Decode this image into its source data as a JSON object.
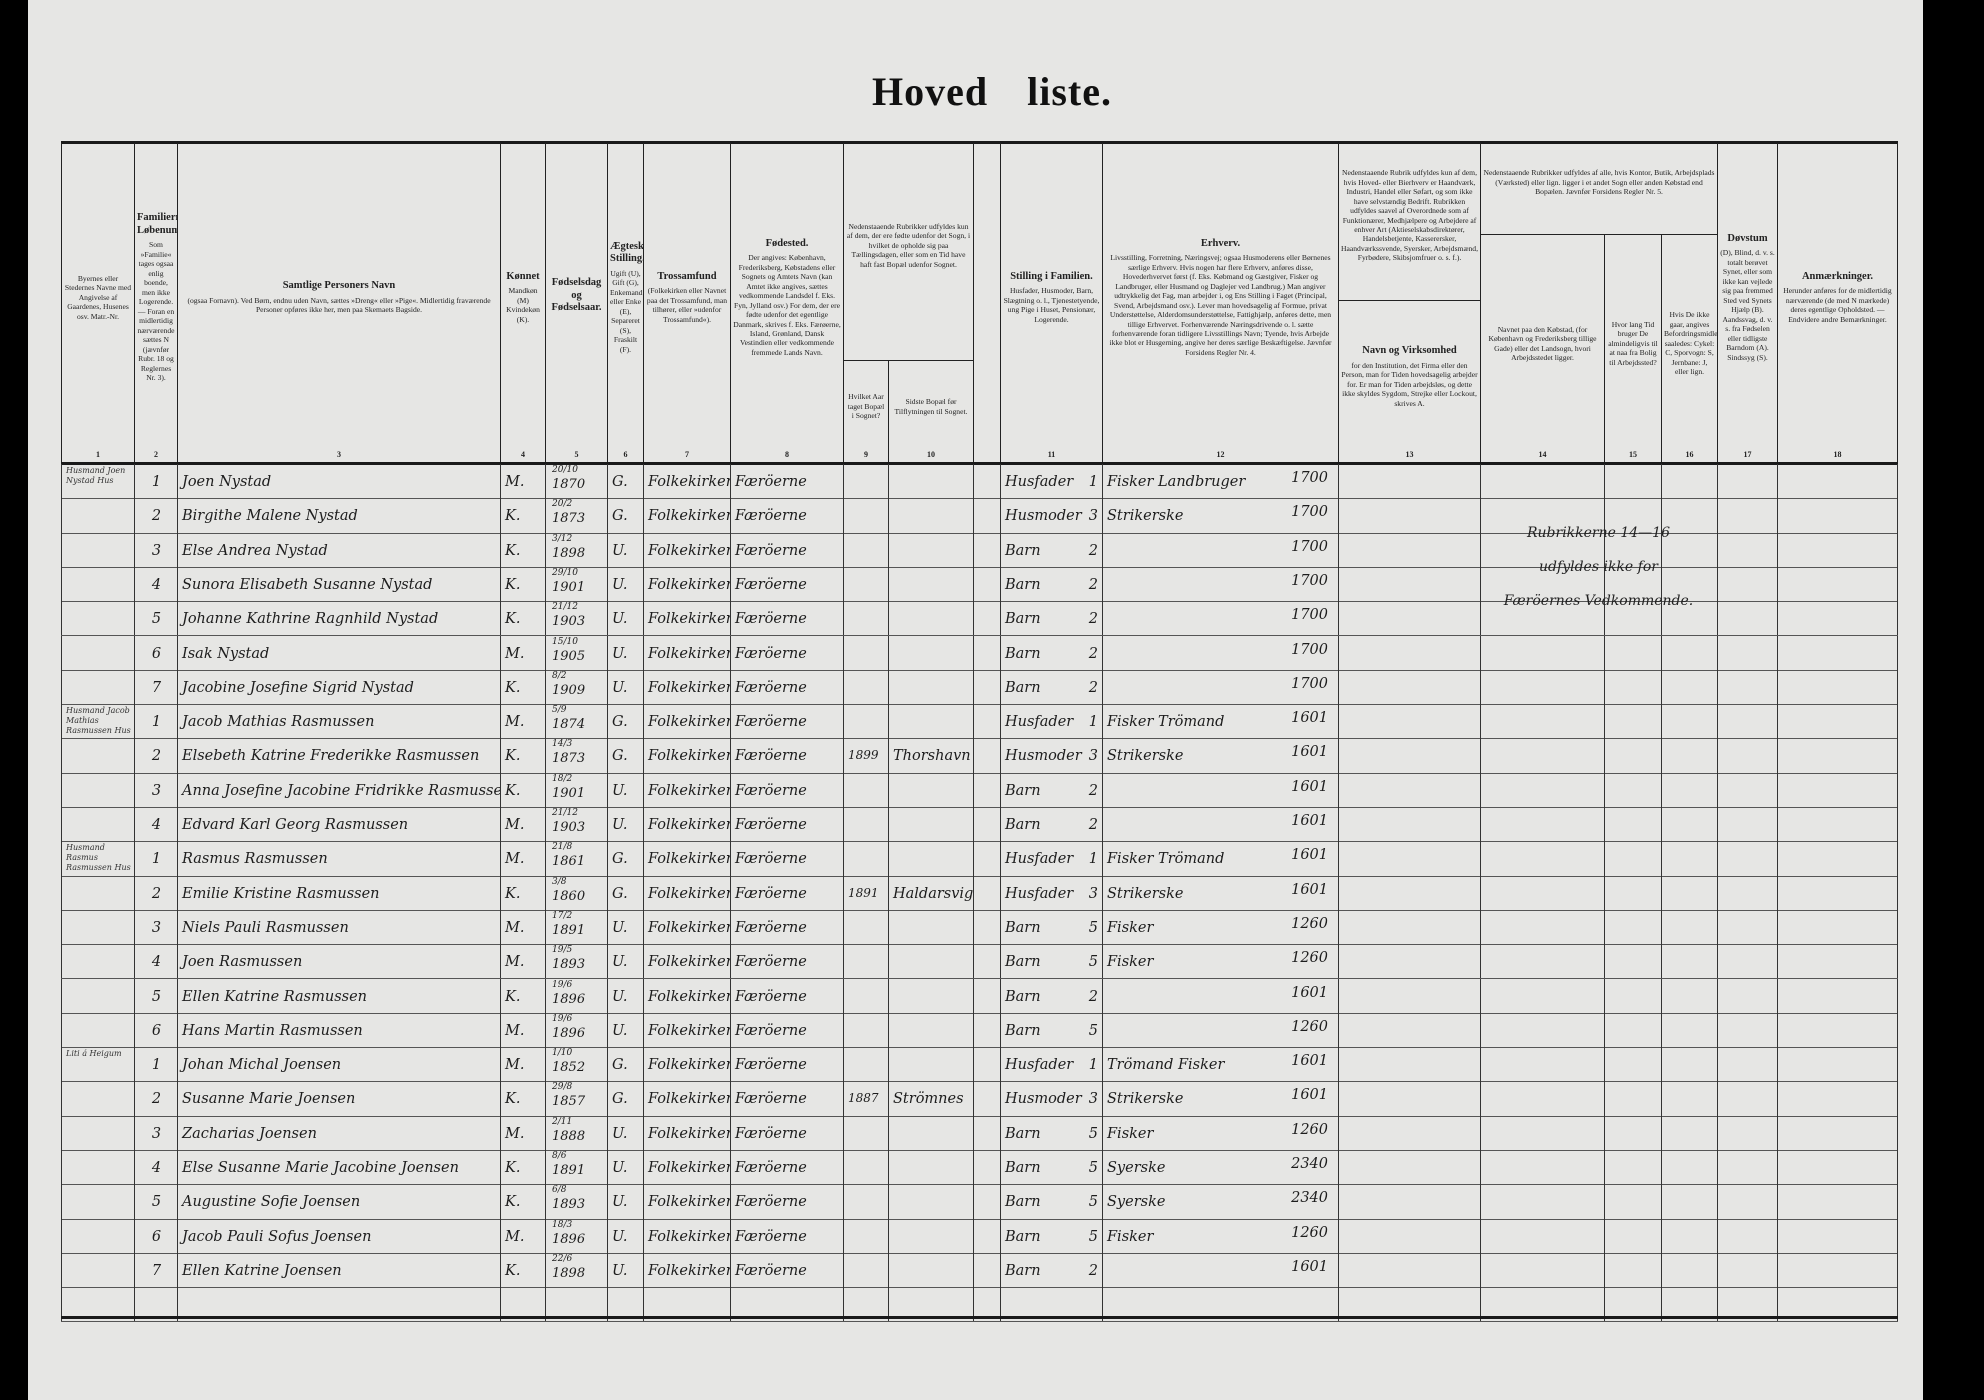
{
  "title": "Hoved liste.",
  "columns": {
    "c1": {
      "num": "1",
      "title": "",
      "text": "Byernes eller Stedernes Navne med Angivelse af Gaardenes, Husenes osv. Matr.-Nr."
    },
    "c2": {
      "num": "2",
      "title": "Familiernes Løbenumre.",
      "text": "Som »Familie« tages ogsaa enlig boende, men ikke Logerende. — Foran en midlertidig nærværende sættes N (jævnfør Rubr. 18 og Reglernes Nr. 3)."
    },
    "c3": {
      "num": "3",
      "title": "Samtlige Personers Navn",
      "text": "(ogsaa Fornavn). Ved Børn, endnu uden Navn, sættes »Dreng« eller »Pige«. Midlertidig fraværende Personer opføres ikke her, men paa Skemaets Bagside."
    },
    "c4": {
      "num": "4",
      "title": "Kønnet",
      "text": "Mandkøn (M) Kvindekøn (K)."
    },
    "c5": {
      "num": "5",
      "title": "Fødselsdag og Fødselsaar.",
      "text": ""
    },
    "c6": {
      "num": "6",
      "title": "Ægteskabelig Stilling.",
      "text": "Ugift (U), Gift (G), Enkemand eller Enke (E), Separeret (S), Fraskilt (F)."
    },
    "c7": {
      "num": "7",
      "title": "Trossamfund",
      "text": "(Folkekirken eller Navnet paa det Trossamfund, man tilhører, eller »udenfor Trossamfund«)."
    },
    "c8": {
      "num": "8",
      "title": "Fødested.",
      "text": "Der angives: København, Frederiksberg, Købstadens eller Sognets og Amtets Navn (kan Amtet ikke angives, sættes vedkommende Landsdel f. Eks. Fyn, Jylland osv.) For dem, der ere fødte udenfor det egentlige Danmark, skrives f. Eks. Færøerne, Island, Grønland, Dansk Vestindien eller vedkommende fremmede Lands Navn."
    },
    "c9_10": {
      "text": "Nedenstaaende Rubrikker udfyldes kun af dem, der ere fødte udenfor det Sogn, i hvilket de opholde sig paa Tællingsdagen, eller som en Tid have haft fast Bopæl udenfor Sognet."
    },
    "c9": {
      "num": "9",
      "title": "",
      "text": "Hvilket Aar taget Bopæl i Sognet?"
    },
    "c10": {
      "num": "10",
      "title": "",
      "text": "Sidste Bopæl før Tilflytningen til Sognet."
    },
    "c11": {
      "num": "11",
      "title": "Stilling i Familien.",
      "text": "Husfader, Husmoder, Barn, Slægtning o. l., Tjenestetyende, ung Pige i Huset, Pensionær, Logerende."
    },
    "c12": {
      "num": "12",
      "title": "Erhverv.",
      "text": "Livsstilling, Forretning, Næringsvej; ogsaa Husmoderens eller Børnenes særlige Erhverv. Hvis nogen har flere Erhverv, anføres disse, Hovederhvervet først (f. Eks. Købmand og Gæstgiver, Fisker og Landbruger, eller Husmand og Daglejer ved Landbrug.) Man angiver udtrykkelig det Fag, man arbejder i, og Ens Stilling i Faget (Principal, Svend, Arbejdsmand osv.). Lever man hovedsagelig af Formue, privat Understøttelse, Alderdomsunderstøttelse, Fattighjælp, anføres dette, men tillige Erhvervet. Forhenværende Næringsdrivende o. l. sætte forhenværende foran tidligere Livsstillings Navn; Tyende, hvis Arbejde ikke blot er Husgerning, angive her deres særlige Beskæftigelse. Jævnfør Forsidens Regler Nr. 4."
    },
    "c13_top": {
      "text": "Nedenstaaende Rubrik udfyldes kun af dem, hvis Hoved- eller Bierhverv er Haandværk, Industri, Handel eller Søfart, og som ikke have selvstændig Bedrift. Rubrikken udfyldes saavel af Overordnede som af Funktionærer, Medhjælpere og Arbejdere af enhver Art (Aktieselskabsdirektører, Handelsbetjente, Kasserersker, Haandværkssvende, Syersker, Arbejdsmænd, Fyrbødere, Skibsjomfruer o. s. f.)."
    },
    "c13": {
      "num": "13",
      "title": "Navn og Virksomhed",
      "text": "for den Institution, det Firma eller den Person, man for Tiden hovedsagelig arbejder for. Er man for Tiden arbejdsløs, og dette ikke skyldes Sygdom, Strejke eller Lockout, skrives A."
    },
    "c14_16": {
      "text": "Nedenstaaende Rubrikker udfyldes af alle, hvis Kontor, Butik, Arbejdsplads (Værksted) eller lign. ligger i et andet Sogn eller anden Købstad end Bopælen. Jævnfør Forsidens Regler Nr. 5."
    },
    "c14": {
      "num": "14",
      "title": "",
      "text": "Navnet paa den Købstad, (for København og Frederiksberg tillige Gade) eller det Landsogn, hvori Arbejdsstedet ligger."
    },
    "c15": {
      "num": "15",
      "title": "",
      "text": "Hvor lang Tid bruger De almindeligvis til at naa fra Bolig til Arbejdssted?"
    },
    "c16": {
      "num": "16",
      "title": "",
      "text": "Hvis De ikke gaar, angives Befordringsmidlet saaledes: Cykel: C, Sporvogn: S, Jernbane: J, eller lign."
    },
    "c17": {
      "num": "17",
      "title": "Døvstum",
      "text": "(D), Blind, d. v. s. totalt berøvet Synet, eller som ikke kan vejlede sig paa fremmed Sted ved Synets Hjælp (B). Aandssvag, d. v. s. fra Fødselen eller tidligste Barndom (A). Sindssyg (S)."
    },
    "c18": {
      "num": "18",
      "title": "Anmærkninger.",
      "text": "Herunder anføres for de midlertidig nærværende (de med N mærkede) deres egentlige Opholdsted. — Endvidere andre Bemærkninger."
    }
  },
  "note_14_16": [
    "Rubrikkerne 14—16",
    "udfyldes ikke for",
    "Færöernes Vedkommende."
  ],
  "persons": [
    {
      "place": "Husmand Joen Nystad Hus",
      "no": "1",
      "name": "Joen Nystad",
      "sex": "M.",
      "bdate": "20/10",
      "byear": "1870",
      "marital": "G.",
      "faith": "Folkekirken",
      "birthplace": "Færöerne",
      "arr_year": "",
      "prev": "",
      "fam": "Husfader",
      "fam_code": "1",
      "occ": "Fisker Landbruger",
      "occ_code": "1700"
    },
    {
      "place": "",
      "no": "2",
      "name": "Birgithe Malene Nystad",
      "sex": "K.",
      "bdate": "20/2",
      "byear": "1873",
      "marital": "G.",
      "faith": "Folkekirken",
      "birthplace": "Færöerne",
      "arr_year": "",
      "prev": "",
      "fam": "Husmoder",
      "fam_code": "3",
      "occ": "Strikerske",
      "occ_code": "1700"
    },
    {
      "place": "",
      "no": "3",
      "name": "Else Andrea Nystad",
      "sex": "K.",
      "bdate": "3/12",
      "byear": "1898",
      "marital": "U.",
      "faith": "Folkekirken",
      "birthplace": "Færöerne",
      "arr_year": "",
      "prev": "",
      "fam": "Barn",
      "fam_code": "2",
      "occ": "",
      "occ_code": "1700"
    },
    {
      "place": "",
      "no": "4",
      "name": "Sunora Elisabeth Susanne Nystad",
      "sex": "K.",
      "bdate": "29/10",
      "byear": "1901",
      "marital": "U.",
      "faith": "Folkekirken",
      "birthplace": "Færöerne",
      "arr_year": "",
      "prev": "",
      "fam": "Barn",
      "fam_code": "2",
      "occ": "",
      "occ_code": "1700"
    },
    {
      "place": "",
      "no": "5",
      "name": "Johanne Kathrine Ragnhild Nystad",
      "sex": "K.",
      "bdate": "21/12",
      "byear": "1903",
      "marital": "U.",
      "faith": "Folkekirken",
      "birthplace": "Færöerne",
      "arr_year": "",
      "prev": "",
      "fam": "Barn",
      "fam_code": "2",
      "occ": "",
      "occ_code": "1700"
    },
    {
      "place": "",
      "no": "6",
      "name": "Isak Nystad",
      "sex": "M.",
      "bdate": "15/10",
      "byear": "1905",
      "marital": "U.",
      "faith": "Folkekirken",
      "birthplace": "Færöerne",
      "arr_year": "",
      "prev": "",
      "fam": "Barn",
      "fam_code": "2",
      "occ": "",
      "occ_code": "1700"
    },
    {
      "place": "",
      "no": "7",
      "name": "Jacobine Josefine Sigrid Nystad",
      "sex": "K.",
      "bdate": "8/2",
      "byear": "1909",
      "marital": "U.",
      "faith": "Folkekirken",
      "birthplace": "Færöerne",
      "arr_year": "",
      "prev": "",
      "fam": "Barn",
      "fam_code": "2",
      "occ": "",
      "occ_code": "1700"
    },
    {
      "place": "Husmand Jacob Mathias Rasmussen Hus",
      "no": "1",
      "name": "Jacob Mathias Rasmussen",
      "sex": "M.",
      "bdate": "5/9",
      "byear": "1874",
      "marital": "G.",
      "faith": "Folkekirken",
      "birthplace": "Færöerne",
      "arr_year": "",
      "prev": "",
      "fam": "Husfader",
      "fam_code": "1",
      "occ": "Fisker Trömand",
      "occ_code": "1601"
    },
    {
      "place": "",
      "no": "2",
      "name": "Elsebeth Katrine Frederikke Rasmussen",
      "sex": "K.",
      "bdate": "14/3",
      "byear": "1873",
      "marital": "G.",
      "faith": "Folkekirken",
      "birthplace": "Færöerne",
      "arr_year": "1899",
      "prev": "Thorshavn",
      "fam": "Husmoder",
      "fam_code": "3",
      "occ": "Strikerske",
      "occ_code": "1601"
    },
    {
      "place": "",
      "no": "3",
      "name": "Anna Josefine Jacobine Fridrikke Rasmussen",
      "sex": "K.",
      "bdate": "18/2",
      "byear": "1901",
      "marital": "U.",
      "faith": "Folkekirken",
      "birthplace": "Færöerne",
      "arr_year": "",
      "prev": "",
      "fam": "Barn",
      "fam_code": "2",
      "occ": "",
      "occ_code": "1601"
    },
    {
      "place": "",
      "no": "4",
      "name": "Edvard Karl Georg Rasmussen",
      "sex": "M.",
      "bdate": "21/12",
      "byear": "1903",
      "marital": "U.",
      "faith": "Folkekirken",
      "birthplace": "Færöerne",
      "arr_year": "",
      "prev": "",
      "fam": "Barn",
      "fam_code": "2",
      "occ": "",
      "occ_code": "1601"
    },
    {
      "place": "Husmand Rasmus Rasmussen Hus",
      "no": "1",
      "name": "Rasmus Rasmussen",
      "sex": "M.",
      "bdate": "21/8",
      "byear": "1861",
      "marital": "G.",
      "faith": "Folkekirken",
      "birthplace": "Færöerne",
      "arr_year": "",
      "prev": "",
      "fam": "Husfader",
      "fam_code": "1",
      "occ": "Fisker Trömand",
      "occ_code": "1601"
    },
    {
      "place": "",
      "no": "2",
      "name": "Emilie Kristine Rasmussen",
      "sex": "K.",
      "bdate": "3/8",
      "byear": "1860",
      "marital": "G.",
      "faith": "Folkekirken",
      "birthplace": "Færöerne",
      "arr_year": "1891",
      "prev": "Haldarsvig",
      "fam": "Husfader",
      "fam_code": "3",
      "occ": "Strikerske",
      "occ_code": "1601"
    },
    {
      "place": "",
      "no": "3",
      "name": "Niels Pauli Rasmussen",
      "sex": "M.",
      "bdate": "17/2",
      "byear": "1891",
      "marital": "U.",
      "faith": "Folkekirken",
      "birthplace": "Færöerne",
      "arr_year": "",
      "prev": "",
      "fam": "Barn",
      "fam_code": "5",
      "occ": "Fisker",
      "occ_code": "1260"
    },
    {
      "place": "",
      "no": "4",
      "name": "Joen Rasmussen",
      "sex": "M.",
      "bdate": "19/5",
      "byear": "1893",
      "marital": "U.",
      "faith": "Folkekirken",
      "birthplace": "Færöerne",
      "arr_year": "",
      "prev": "",
      "fam": "Barn",
      "fam_code": "5",
      "occ": "Fisker",
      "occ_code": "1260"
    },
    {
      "place": "",
      "no": "5",
      "name": "Ellen Katrine Rasmussen",
      "sex": "K.",
      "bdate": "19/6",
      "byear": "1896",
      "marital": "U.",
      "faith": "Folkekirken",
      "birthplace": "Færöerne",
      "arr_year": "",
      "prev": "",
      "fam": "Barn",
      "fam_code": "2",
      "occ": "",
      "occ_code": "1601"
    },
    {
      "place": "",
      "no": "6",
      "name": "Hans Martin Rasmussen",
      "sex": "M.",
      "bdate": "19/6",
      "byear": "1896",
      "marital": "U.",
      "faith": "Folkekirken",
      "birthplace": "Færöerne",
      "arr_year": "",
      "prev": "",
      "fam": "Barn",
      "fam_code": "5",
      "occ": "",
      "occ_code": "1260"
    },
    {
      "place": "Liti á Heigum",
      "no": "1",
      "name": "Johan Michal Joensen",
      "sex": "M.",
      "bdate": "1/10",
      "byear": "1852",
      "marital": "G.",
      "faith": "Folkekirken",
      "birthplace": "Færöerne",
      "arr_year": "",
      "prev": "",
      "fam": "Husfader",
      "fam_code": "1",
      "occ": "Trömand Fisker",
      "occ_code": "1601"
    },
    {
      "place": "",
      "no": "2",
      "name": "Susanne Marie Joensen",
      "sex": "K.",
      "bdate": "29/8",
      "byear": "1857",
      "marital": "G.",
      "faith": "Folkekirken",
      "birthplace": "Færöerne",
      "arr_year": "1887",
      "prev": "Strömnes",
      "fam": "Husmoder",
      "fam_code": "3",
      "occ": "Strikerske",
      "occ_code": "1601"
    },
    {
      "place": "",
      "no": "3",
      "name": "Zacharias Joensen",
      "sex": "M.",
      "bdate": "2/11",
      "byear": "1888",
      "marital": "U.",
      "faith": "Folkekirken",
      "birthplace": "Færöerne",
      "arr_year": "",
      "prev": "",
      "fam": "Barn",
      "fam_code": "5",
      "occ": "Fisker",
      "occ_code": "1260"
    },
    {
      "place": "",
      "no": "4",
      "name": "Else Susanne Marie Jacobine Joensen",
      "sex": "K.",
      "bdate": "8/6",
      "byear": "1891",
      "marital": "U.",
      "faith": "Folkekirken",
      "birthplace": "Færöerne",
      "arr_year": "",
      "prev": "",
      "fam": "Barn",
      "fam_code": "5",
      "occ": "Syerske",
      "occ_code": "2340"
    },
    {
      "place": "",
      "no": "5",
      "name": "Augustine Sofie Joensen",
      "sex": "K.",
      "bdate": "6/8",
      "byear": "1893",
      "marital": "U.",
      "faith": "Folkekirken",
      "birthplace": "Færöerne",
      "arr_year": "",
      "prev": "",
      "fam": "Barn",
      "fam_code": "5",
      "occ": "Syerske",
      "occ_code": "2340"
    },
    {
      "place": "",
      "no": "6",
      "name": "Jacob Pauli Sofus Joensen",
      "sex": "M.",
      "bdate": "18/3",
      "byear": "1896",
      "marital": "U.",
      "faith": "Folkekirken",
      "birthplace": "Færöerne",
      "arr_year": "",
      "prev": "",
      "fam": "Barn",
      "fam_code": "5",
      "occ": "Fisker",
      "occ_code": "1260"
    },
    {
      "place": "",
      "no": "7",
      "name": "Ellen Katrine Joensen",
      "sex": "K.",
      "bdate": "22/6",
      "byear": "1898",
      "marital": "U.",
      "faith": "Folkekirken",
      "birthplace": "Færöerne",
      "arr_year": "",
      "prev": "",
      "fam": "Barn",
      "fam_code": "2",
      "occ": "",
      "occ_code": "1601"
    }
  ]
}
